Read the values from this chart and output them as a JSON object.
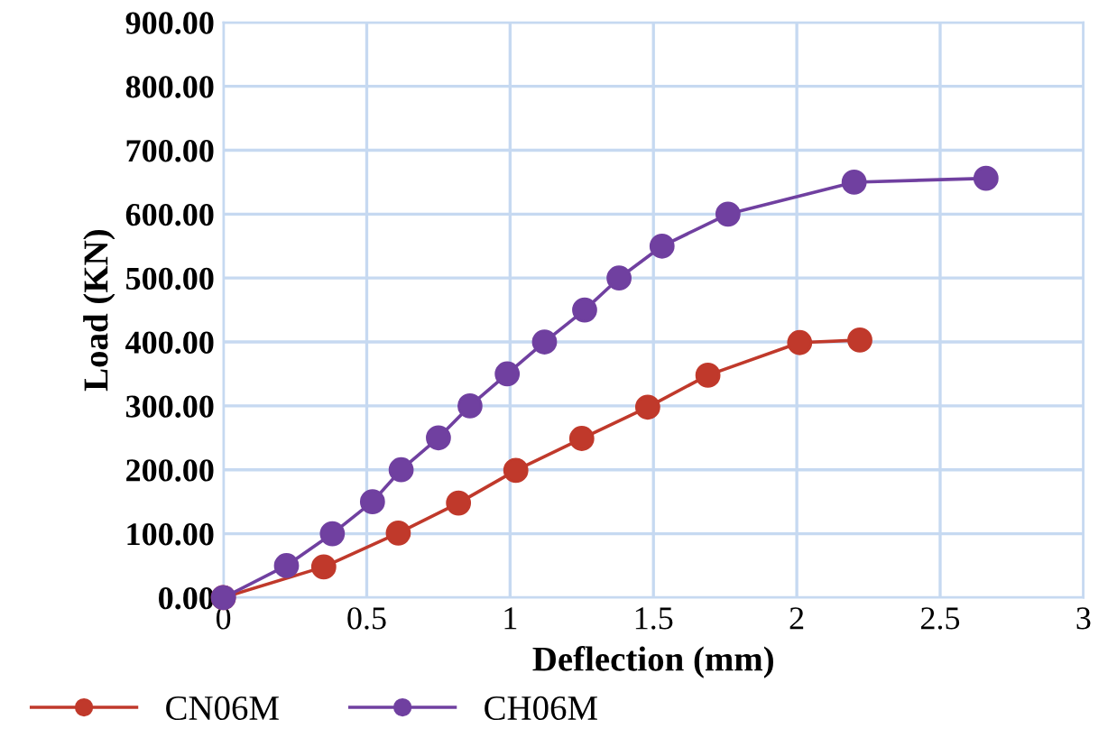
{
  "chart_data": {
    "type": "line",
    "xlabel": "Deflection (mm)",
    "ylabel": "Load (KN)",
    "xlim": [
      0,
      3
    ],
    "xticks": [
      0,
      0.5,
      1,
      1.5,
      2,
      2.5,
      3
    ],
    "ylim": [
      0,
      900
    ],
    "yticks": [
      {
        "value": 0,
        "label": "0.00"
      },
      {
        "value": 100,
        "label": "100.00"
      },
      {
        "value": 200,
        "label": "200.00"
      },
      {
        "value": 300,
        "label": "300.00"
      },
      {
        "value": 400,
        "label": "400.00"
      },
      {
        "value": 500,
        "label": "500.00"
      },
      {
        "value": 600,
        "label": "600.00"
      },
      {
        "value": 700,
        "label": "700.00"
      },
      {
        "value": 800,
        "label": "800.00"
      },
      {
        "value": 900,
        "label": "900.00"
      }
    ],
    "grid": true,
    "legend": "bottom left",
    "marker": "circle",
    "line_style": "solid",
    "series": [
      {
        "name": "CN06M",
        "color": "#c0392b",
        "x": [
          0,
          0.35,
          0.61,
          0.82,
          1.02,
          1.25,
          1.48,
          1.69,
          2.01,
          2.22
        ],
        "values": [
          0,
          48,
          101,
          148,
          199,
          249,
          298,
          348,
          399,
          403
        ]
      },
      {
        "name": "CH06M",
        "color": "#7040a0",
        "x": [
          0,
          0.22,
          0.38,
          0.52,
          0.62,
          0.75,
          0.86,
          0.99,
          1.12,
          1.26,
          1.38,
          1.53,
          1.76,
          2.2,
          2.66
        ],
        "values": [
          0,
          50,
          100,
          150,
          200,
          250,
          300,
          350,
          400,
          450,
          500,
          550,
          600,
          650,
          656
        ]
      }
    ]
  }
}
